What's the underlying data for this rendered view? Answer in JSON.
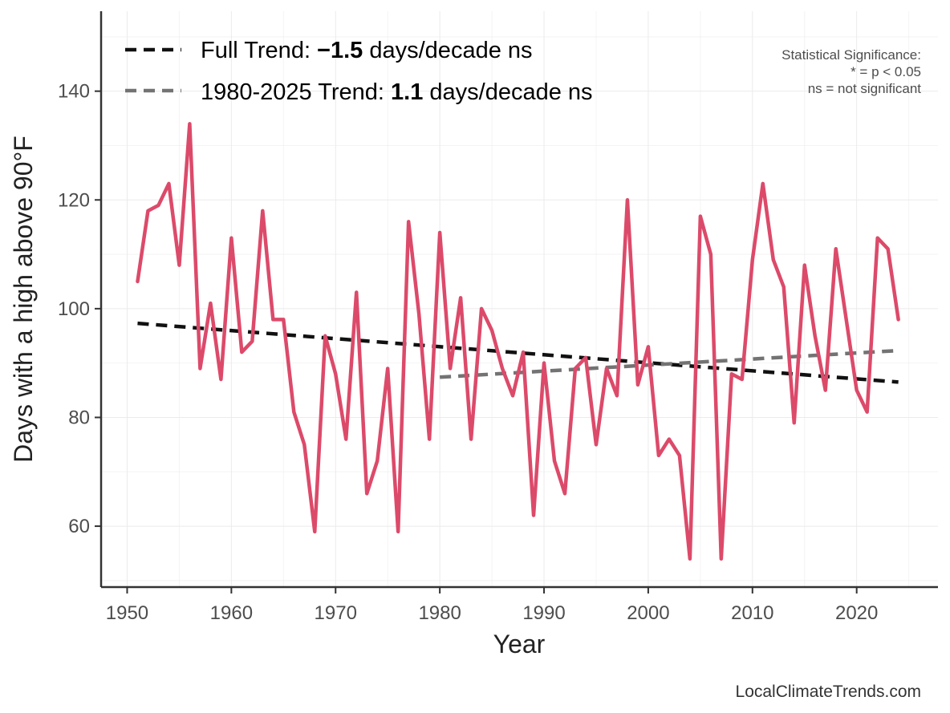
{
  "chart_data": {
    "type": "line",
    "title": "",
    "xlabel": "Year",
    "ylabel": "Days with a high above 90°F",
    "xlim": [
      1947.5,
      2027.8
    ],
    "ylim": [
      48.8,
      154.7
    ],
    "xticks": [
      1950,
      1960,
      1970,
      1980,
      1990,
      2000,
      2010,
      2020
    ],
    "yticks": [
      60,
      80,
      100,
      120,
      140
    ],
    "grid": true,
    "legend_position": "top-left",
    "colors": {
      "series": "#dc4a6a",
      "full_trend": "#111111",
      "recent_trend": "#737373"
    },
    "series": [
      {
        "x": [
          1951,
          1952,
          1953,
          1954,
          1955,
          1956,
          1957,
          1958,
          1959,
          1960,
          1961,
          1962,
          1963,
          1964,
          1965,
          1966,
          1967,
          1968,
          1969,
          1970,
          1971,
          1972,
          1973,
          1974,
          1975,
          1976,
          1977,
          1978,
          1979,
          1980,
          1981,
          1982,
          1983,
          1984,
          1985,
          1986,
          1987,
          1988,
          1989,
          1990,
          1991,
          1992,
          1993,
          1994,
          1995,
          1996,
          1997,
          1998,
          1999,
          2000,
          2001,
          2002,
          2003,
          2004,
          2005,
          2006,
          2007,
          2008,
          2009,
          2010,
          2011,
          2012,
          2013,
          2014,
          2015,
          2016,
          2017,
          2018,
          2019,
          2020,
          2021,
          2022,
          2023,
          2024
        ],
        "values": [
          105,
          118,
          119,
          123,
          108,
          134,
          89,
          101,
          87,
          113,
          92,
          94,
          118,
          98,
          98,
          81,
          75,
          59,
          95,
          88,
          76,
          103,
          66,
          72,
          89,
          59,
          116,
          99,
          76,
          114,
          89,
          102,
          76,
          100,
          96,
          89,
          84,
          92,
          62,
          90,
          72,
          66,
          89,
          91,
          75,
          89,
          84,
          120,
          86,
          93,
          73,
          76,
          73,
          54,
          117,
          110,
          54,
          88,
          87,
          109,
          123,
          109,
          104,
          79,
          108,
          95,
          85,
          111,
          98,
          85,
          81,
          113,
          111,
          98
        ]
      }
    ],
    "trends": [
      {
        "label_prefix": "Full Trend: ",
        "value_label": "−1.5",
        "label_suffix": " days/decade ns",
        "x": [
          1951,
          2024
        ],
        "y": [
          97.3,
          86.5
        ]
      },
      {
        "label_prefix": "1980-2025 Trend: ",
        "value_label": "1.1",
        "label_suffix": " days/decade ns",
        "x": [
          1980,
          2024
        ],
        "y": [
          87.4,
          92.3
        ]
      }
    ],
    "annotations": {
      "significance_title": "Statistical Significance:",
      "significance_star": "* = p < 0.05",
      "significance_ns": "ns = not significant"
    },
    "caption": "LocalClimateTrends.com"
  }
}
